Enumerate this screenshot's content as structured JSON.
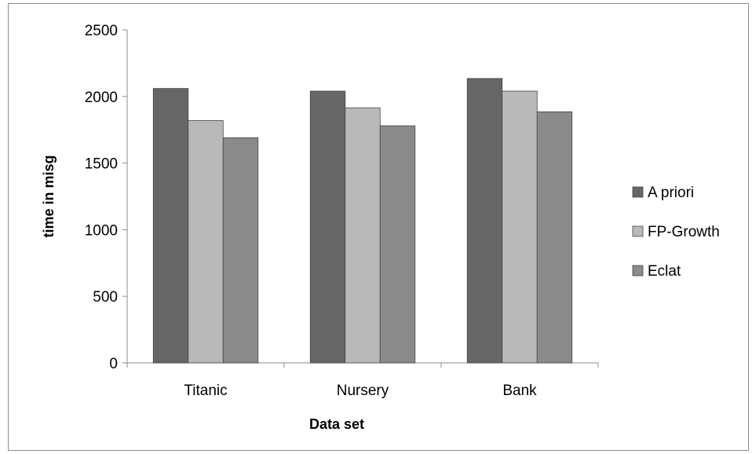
{
  "chart_data": {
    "type": "bar",
    "categories": [
      "Titanic",
      "Nursery",
      "Bank"
    ],
    "series": [
      {
        "name": "A priori",
        "values": [
          2060,
          2040,
          2135
        ],
        "color": "#666666"
      },
      {
        "name": "FP-Growth",
        "values": [
          1820,
          1915,
          2040
        ],
        "color": "#b9b9b9"
      },
      {
        "name": "Eclat",
        "values": [
          1690,
          1780,
          1885
        ],
        "color": "#8a8a8a"
      }
    ],
    "title": "",
    "xlabel": "Data set",
    "ylabel": "time in misg",
    "ylim": [
      0,
      2500
    ],
    "yticks": [
      0,
      500,
      1000,
      1500,
      2000,
      2500
    ],
    "grid": false,
    "legend_position": "right"
  }
}
